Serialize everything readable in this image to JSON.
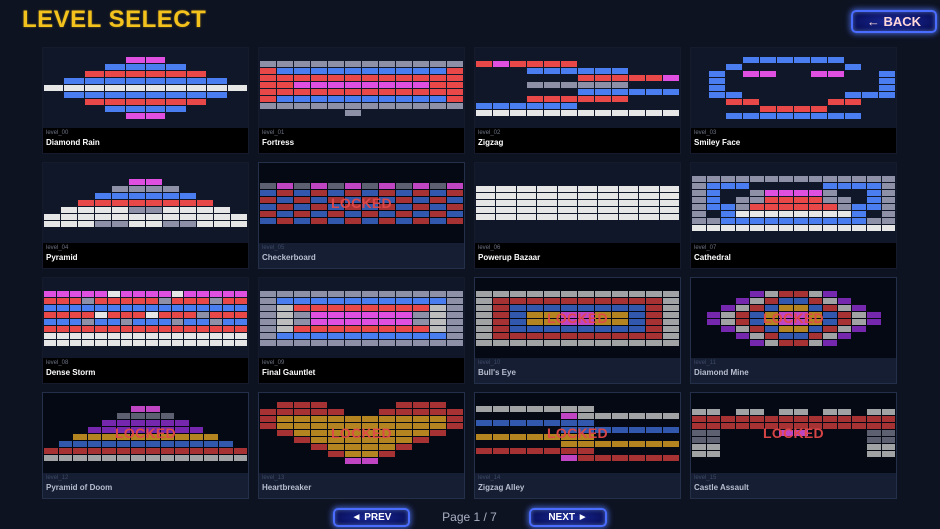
{
  "header": {
    "title": "LEVEL SELECT",
    "back_label": "← BACK"
  },
  "colors": {
    "background": "#0e1322",
    "title": "#f4c21c",
    "locked_text": "#e24848",
    "brick": {
      "R": "#e84848",
      "B": "#4a7ef0",
      "P": "#e050e0",
      "W": "#e6e6e6",
      "G": "#8d90a6",
      "L": "#bdbdbd",
      "Y": "#d49a22",
      "V": "#8a2ec8",
      "r": "#c43a3a",
      "b": "#3a66c8",
      "g": "#6d7080"
    }
  },
  "locked_label": "LOCKED",
  "levels": [
    {
      "id": "level_00",
      "name": "Diamond Rain",
      "locked": false,
      "cols": 10,
      "rows": [
        "....PP....",
        "...BBBB...",
        "..RRRRRR..",
        ".BBBBBBBB.",
        "WWWWWWWWWW",
        ".BBBBBBBB.",
        "..RRRRRR..",
        "...BBBB...",
        "....PP...."
      ]
    },
    {
      "id": "level_01",
      "name": "Fortress",
      "locked": false,
      "cols": 12,
      "rows": [
        "GGGGGGGGGGGG",
        "RBBBBBBBBBBR",
        "RRRRRRRRRRRR",
        "RRPPPPPPPPRR",
        "RRRRRRRRRRRR",
        "RBBBBBBBBBBR",
        "GGGGGGGGGGGG",
        ".....G......"
      ]
    },
    {
      "id": "level_02",
      "name": "Zigzag",
      "locked": false,
      "cols": 12,
      "rows": [
        "RPRRRR......",
        "...BBBBBB...",
        "......RRRRRP",
        "...GGGGGG...",
        "......BBBBBB",
        "...RRRRRR...",
        "BBBBBB......",
        "WWWWWWWWWWWW"
      ]
    },
    {
      "id": "level_03",
      "name": "Smiley Face",
      "locked": false,
      "cols": 12,
      "rows": [
        "...BBBBBB...",
        "..B......B..",
        ".B.PP..PP..B",
        ".B.........B",
        ".B.........B",
        ".BB......BBB",
        "..RR....RR..",
        "....RRRR....",
        "..BBBBBBBB.."
      ]
    },
    {
      "id": "level_04",
      "name": "Pyramid",
      "locked": false,
      "cols": 12,
      "rows": [
        ".....PP.....",
        "....GGGG....",
        "...BBBBBB...",
        "..RRRRRRRR..",
        ".WWWWGGWWWW.",
        "WWWWWWWWWWWW",
        "WWWGGWWGGWWW"
      ]
    },
    {
      "id": "level_05",
      "name": "Checkerboard",
      "locked": true,
      "cols": 12,
      "rows": [
        "gPgPgPgPgPgP",
        "brbrbrbrbrbr",
        "rbrbrbrbrbrb",
        "brbrbrbrbrbr",
        "rbrbrbrbrbrb",
        "brbrbrbrbrbr"
      ]
    },
    {
      "id": "level_06",
      "name": "Powerup Bazaar",
      "locked": false,
      "cols": 10,
      "rows": [
        "WWWWWWWWWW",
        "WWWWWWWWWW",
        "WWWWWWWWWW",
        "WWWWWWWWWW",
        "WWWWWWWWWW"
      ]
    },
    {
      "id": "level_07",
      "name": "Cathedral",
      "locked": false,
      "cols": 14,
      "rows": [
        "GGGGGGGGGGGGGG",
        "GBBB.....BBBBG",
        "GB..GPPPPG..BG",
        "GB.GGRRRRGG.BG",
        "GBBGRRRRRRGBBG",
        "G.BWWWWWWWWB.G",
        "GGBBBBBBBBBBGG",
        "WWWWWWWWWWWWWW"
      ]
    },
    {
      "id": "level_08",
      "name": "Dense Storm",
      "locked": false,
      "cols": 16,
      "rows": [
        "PPPPPWPPPPWPPPPP",
        "RRRGRRRRRGRRRGRR",
        "BBBBBBBBBBBBBBBB",
        "RRRRWRRRWRRRGRRR",
        "BBBGBBGBBBGBBGBB",
        "RRRRRRRRRRRRRRRR",
        "WWWWWWWWWWWWWWWW",
        "WWWWWWWWWWWWWWWW"
      ]
    },
    {
      "id": "level_09",
      "name": "Final Gauntlet",
      "locked": false,
      "cols": 12,
      "rows": [
        "GGGGGGGGGGGG",
        "GBBBBBBBBBBG",
        "GLRRRRRRRRLG",
        "GLGPPPPPPGLG",
        "GLGPPPPPPGLG",
        "GLRRRRRRRRLG",
        "GBBBBBBBBBBG",
        "GGGGGGGGGGGG"
      ]
    },
    {
      "id": "level_10",
      "name": "Bull's Eye",
      "locked": true,
      "cols": 12,
      "rows": [
        "LLLLLLLLLLLL",
        "LrrrrrrrrrrL",
        "LrbbbbbbbbrL",
        "LrbYYPPYYbrL",
        "LrbYYPPYYbrL",
        "LrbbbbbbbbrL",
        "LrrrrrrrrrrL",
        "LLLLLLLLLLLL"
      ]
    },
    {
      "id": "level_11",
      "name": "Diamond Mine",
      "locked": true,
      "cols": 14,
      "rows": [
        "....VLrrLV....",
        "...VLrbbrLV...",
        "..VLrbYYbrLV..",
        ".VLrbYPPYbrLV.",
        ".VLrbYPPYbrLV.",
        "..VLrbYYbrLV..",
        "...VLrbbrLV...",
        "....VLrrLV...."
      ]
    },
    {
      "id": "level_12",
      "name": "Pyramid of Doom",
      "locked": true,
      "cols": 14,
      "rows": [
        "......PP......",
        ".....gggg.....",
        "....VVVVVV....",
        "...VVVVVVVV...",
        "..YYYYYYYYYY..",
        ".bbbbbbbbbbbb.",
        "rrrrrrrrrrrrrr",
        "LLLLLLLLLLLLLL"
      ]
    },
    {
      "id": "level_13",
      "name": "Heartbreaker",
      "locked": true,
      "cols": 12,
      "rows": [
        ".rrr....rrr.",
        "rrrrr..rrrrr",
        "rYYYYYYYYYYr",
        "rYYYYYYYYYYr",
        ".rYYYYYYYYr.",
        "..rYYYYYYr..",
        "...rYYYYr...",
        "....rYYr....",
        ".....PP....."
      ]
    },
    {
      "id": "level_14",
      "name": "Zigzag Alley",
      "locked": true,
      "cols": 12,
      "rows": [
        "LLLLLLL.....",
        ".....PLLLLLL",
        "bbbbbbb.....",
        ".....bbbbbbb",
        "YYYYYYY.....",
        ".....YYYYYYY",
        "rrrrrrr.....",
        ".....Prrrrrr"
      ]
    },
    {
      "id": "level_15",
      "name": "Castle Assault",
      "locked": true,
      "cols": 14,
      "rows": [
        "LL.LL.LL.LL.LL",
        "rrrrrrrrrrrrrr",
        "rrrrrrrrrrrrrr",
        "gg....PP....gg",
        "gg..........gg",
        "LL..........LL",
        "LL..........LL"
      ]
    }
  ],
  "pagination": {
    "prev_label": "◄ PREV",
    "next_label": "NEXT ►",
    "page_text": "Page 1 / 7",
    "current_page": 1,
    "total_pages": 7
  }
}
